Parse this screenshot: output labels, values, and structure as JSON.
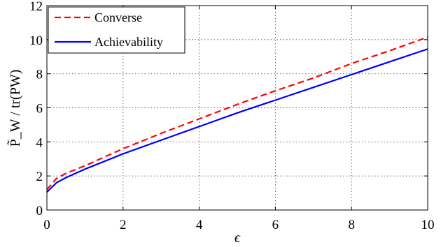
{
  "chart_data": {
    "type": "line",
    "xlabel": "ϵ",
    "ylabel": "P̃_W / tr(PW)",
    "xlim": [
      0,
      10
    ],
    "ylim": [
      0,
      12
    ],
    "xticks": [
      0,
      2,
      4,
      6,
      8,
      10
    ],
    "yticks": [
      0,
      2,
      4,
      6,
      8,
      10,
      12
    ],
    "grid": true,
    "legend_position": "top-left",
    "series": [
      {
        "name": "Converse",
        "color": "#ff0000",
        "style": "dashed",
        "x": [
          0,
          0.25,
          0.5,
          1,
          2,
          3,
          4,
          5,
          6,
          7,
          8,
          9,
          10
        ],
        "y": [
          1.2,
          1.85,
          2.15,
          2.6,
          3.6,
          4.5,
          5.35,
          6.2,
          7.0,
          7.75,
          8.6,
          9.35,
          10.15
        ]
      },
      {
        "name": "Achievability",
        "color": "#0000ff",
        "style": "solid",
        "x": [
          0,
          0.25,
          0.5,
          1,
          2,
          3,
          4,
          5,
          6,
          7,
          8,
          9,
          10
        ],
        "y": [
          1.05,
          1.6,
          1.9,
          2.4,
          3.3,
          4.1,
          4.9,
          5.7,
          6.45,
          7.2,
          7.95,
          8.7,
          9.45
        ]
      }
    ]
  }
}
